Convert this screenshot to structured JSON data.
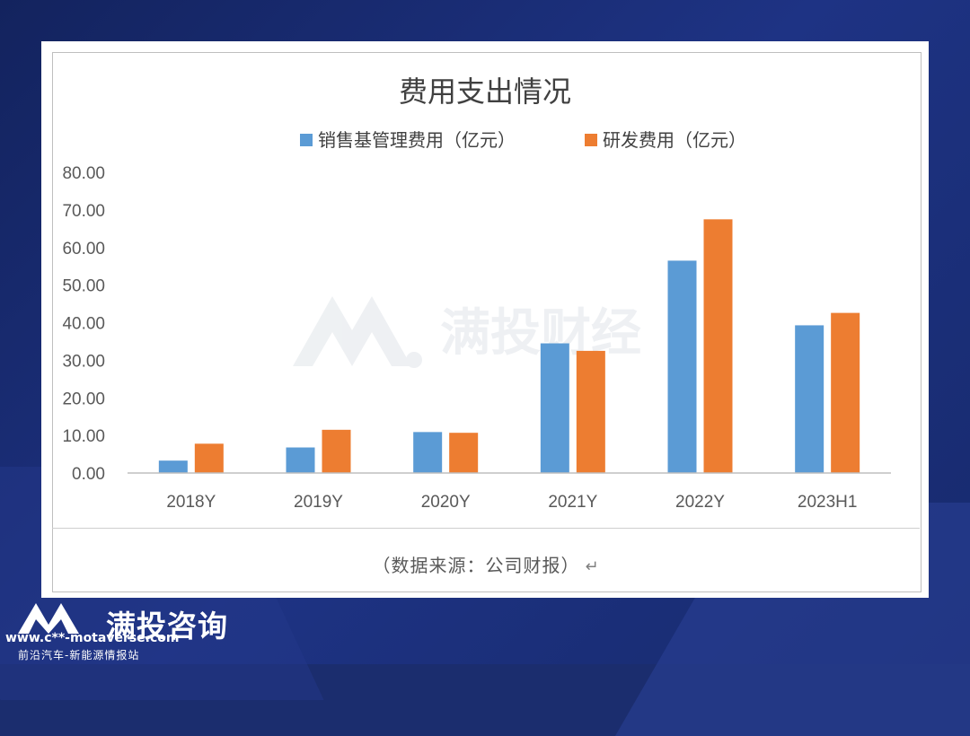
{
  "chart_data": {
    "type": "bar",
    "title": "费用支出情况",
    "categories": [
      "2018Y",
      "2019Y",
      "2020Y",
      "2021Y",
      "2022Y",
      "2023H1"
    ],
    "series": [
      {
        "name": "销售基管理费用（亿元）",
        "color": "#5b9bd5",
        "values": [
          3.3,
          6.8,
          10.9,
          34.5,
          56.5,
          39.3
        ]
      },
      {
        "name": "研发费用（亿元）",
        "color": "#ed7d31",
        "values": [
          7.8,
          11.5,
          10.7,
          32.5,
          67.5,
          42.6
        ]
      }
    ],
    "yticks": [
      "0.00",
      "10.00",
      "20.00",
      "30.00",
      "40.00",
      "50.00",
      "60.00",
      "70.00",
      "80.00"
    ],
    "ylim": [
      0,
      80
    ],
    "legend_position": "top",
    "grid": false,
    "watermark": "满投财经"
  },
  "source_note": "（数据来源：公司财报）",
  "return_mark": "↵",
  "footer": {
    "brand": "满投咨询",
    "url": "www.c**-motaverse.com",
    "tagline": "前沿汽车-新能源情报站"
  }
}
